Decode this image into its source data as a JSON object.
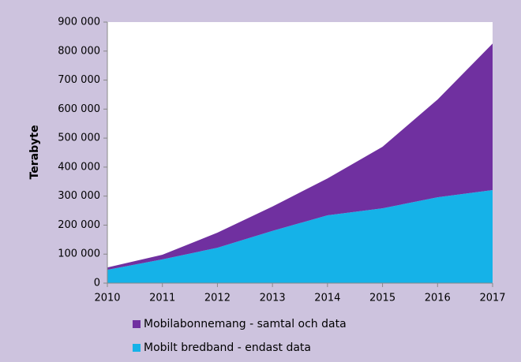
{
  "chart_data": {
    "type": "stacked_area",
    "y_label": "Terabyte",
    "categories": [
      "2010",
      "2011",
      "2012",
      "2013",
      "2014",
      "2015",
      "2016",
      "2017"
    ],
    "series": [
      {
        "name": "Mobilt bredband - endast data",
        "color": "#15b2e8",
        "values": [
          46000,
          82000,
          122000,
          180000,
          234000,
          258000,
          296000,
          321000
        ]
      },
      {
        "name": "Mobilabonnemang - samtal och data",
        "color": "#7030a0",
        "values": [
          8000,
          16000,
          52000,
          84000,
          127000,
          212000,
          337000,
          505000
        ]
      }
    ],
    "ylim": [
      0,
      900000
    ],
    "yticks": [
      0,
      {
        "value": 100000,
        "label": "100 000"
      },
      {
        "value": 200000,
        "label": "200 000"
      },
      {
        "value": 300000,
        "label": "300 000"
      },
      {
        "value": 400000,
        "label": "400 000"
      },
      {
        "value": 500000,
        "label": "500 000"
      },
      {
        "value": 600000,
        "label": "600 000"
      },
      {
        "value": 700000,
        "label": "700 000"
      },
      {
        "value": 800000,
        "label": "800 000"
      },
      {
        "value": 900000,
        "label": "900 000"
      }
    ],
    "legend": "bottom"
  }
}
